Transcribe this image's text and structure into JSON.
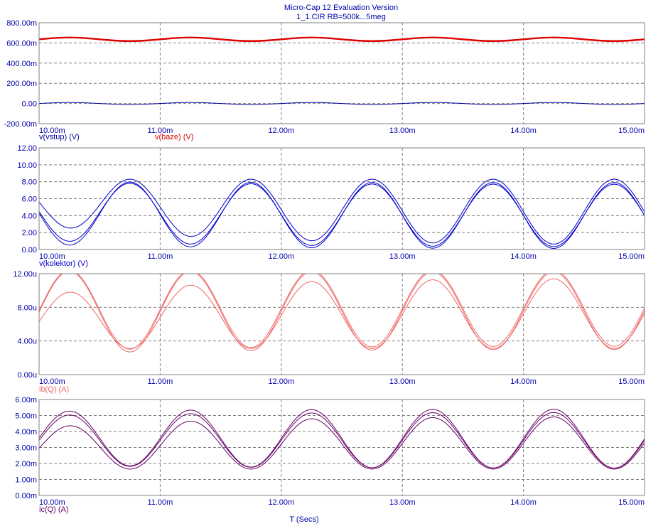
{
  "header": {
    "title": "Micro-Cap 12 Evaluation Version",
    "subtitle": "1_1.CIR RB=500k...5meg"
  },
  "colors": {
    "axis_text": "#0000aa",
    "grid": "#7f7f7f",
    "vstup": "#000099",
    "baze": "#dd0000",
    "kolektor": "#0000cc",
    "ib": "#ee6666",
    "ic": "#660066"
  },
  "chart_data": [
    {
      "type": "line",
      "x_range": [
        10.0,
        15.0
      ],
      "x_unit": "ms",
      "x_ticks": [
        "10.00m",
        "11.00m",
        "12.00m",
        "13.00m",
        "14.00m",
        "15.00m"
      ],
      "ylim": [
        -0.2,
        0.8
      ],
      "y_ticks": [
        "800.00m",
        "600.00m",
        "400.00m",
        "200.00m",
        "0.00",
        "-200.00m"
      ],
      "grid": true,
      "labels": [
        {
          "text": "v(vstup) (V)",
          "color": "#000099"
        },
        {
          "text": "v(baze) (V)",
          "color": "#dd0000"
        }
      ],
      "series": [
        {
          "name": "v(vstup) (V)",
          "color": "#000099",
          "wave": {
            "offset": 0.0,
            "amplitude": 0.01,
            "freq_khz": 1.0,
            "phase_ms": 0.25
          }
        },
        {
          "name": "v(baze) (V)",
          "color": "#dd0000",
          "wave": {
            "offset": 0.632,
            "amplitude": 0.018,
            "freq_khz": 1.0,
            "phase_ms": 0.25
          }
        },
        {
          "name": "v(baze) (V)",
          "color": "#dd0000",
          "wave": {
            "offset": 0.636,
            "amplitude": 0.018,
            "freq_khz": 1.0,
            "phase_ms": 0.25
          }
        },
        {
          "name": "v(baze) (V)",
          "color": "#dd0000",
          "wave": {
            "offset": 0.64,
            "amplitude": 0.017,
            "freq_khz": 1.0,
            "phase_ms": 0.25
          }
        }
      ]
    },
    {
      "type": "line",
      "x_range": [
        10.0,
        15.0
      ],
      "x_unit": "ms",
      "x_ticks": [
        "10.00m",
        "11.00m",
        "12.00m",
        "13.00m",
        "14.00m",
        "15.00m"
      ],
      "ylim": [
        0,
        12
      ],
      "y_ticks": [
        "12.00",
        "10.00",
        "8.00",
        "6.00",
        "4.00",
        "2.00",
        "0.00"
      ],
      "grid": true,
      "labels": [
        {
          "text": "v(kolektor) (V)",
          "color": "#0000cc"
        }
      ],
      "series": [
        {
          "name": "v(kolektor) (V)",
          "color": "#0000cc",
          "wave": {
            "offset": 4.0,
            "amplitude": 3.7,
            "freq_khz": 1.0,
            "phase_ms": 0.75,
            "drift_offset": 0.5,
            "drift_amplitude": -0.3,
            "tau_ms": 1.5
          }
        },
        {
          "name": "v(kolektor) (V)",
          "color": "#0000cc",
          "wave": {
            "offset": 4.0,
            "amplitude": 3.9,
            "freq_khz": 1.0,
            "phase_ms": 0.75,
            "drift_offset": 0.3,
            "drift_amplitude": -0.2,
            "tau_ms": 1.5
          }
        },
        {
          "name": "v(kolektor) (V)",
          "color": "#0000cc",
          "wave": {
            "offset": 4.4,
            "amplitude": 3.9,
            "freq_khz": 1.0,
            "phase_ms": 0.75,
            "drift_offset": 1.2,
            "drift_amplitude": -1.2,
            "tau_ms": 1.5
          }
        }
      ]
    },
    {
      "type": "line",
      "x_range": [
        10.0,
        15.0
      ],
      "x_unit": "ms",
      "x_ticks": [
        "10.00m",
        "11.00m",
        "12.00m",
        "13.00m",
        "14.00m",
        "15.00m"
      ],
      "ylim": [
        0,
        12
      ],
      "y_ticks": [
        "12.00u",
        "8.00u",
        "4.00u",
        "0.00u"
      ],
      "grid": true,
      "labels": [
        {
          "text": "ib(Q) (A)",
          "color": "#ee6666"
        }
      ],
      "series": [
        {
          "name": "ib(Q) (A)",
          "color": "#ee6666",
          "wave": {
            "offset": 7.9,
            "amplitude": 4.5,
            "freq_khz": 1.0,
            "phase_ms": 0.25,
            "drift_offset": -0.3,
            "drift_amplitude": 0.3,
            "tau_ms": 1.5
          }
        },
        {
          "name": "ib(Q) (A)",
          "color": "#ee6666",
          "wave": {
            "offset": 7.6,
            "amplitude": 4.6,
            "freq_khz": 1.0,
            "phase_ms": 0.25,
            "drift_offset": -0.2,
            "drift_amplitude": 0.3,
            "tau_ms": 1.5
          }
        },
        {
          "name": "ib(Q) (A)",
          "color": "#ee6666",
          "wave": {
            "offset": 7.3,
            "amplitude": 4.2,
            "freq_khz": 1.0,
            "phase_ms": 0.25,
            "drift_offset": -1.0,
            "drift_amplitude": -1.0,
            "tau_ms": 1.5
          }
        }
      ]
    },
    {
      "type": "line",
      "x_range": [
        10.0,
        15.0
      ],
      "x_unit": "ms",
      "x_ticks": [
        "10.00m",
        "11.00m",
        "12.00m",
        "13.00m",
        "14.00m",
        "15.00m"
      ],
      "ylim": [
        0,
        6
      ],
      "y_ticks": [
        "6.00m",
        "5.00m",
        "4.00m",
        "3.00m",
        "2.00m",
        "1.00m",
        "0.00m"
      ],
      "grid": true,
      "labels": [
        {
          "text": "ic(Q) (A)",
          "color": "#660066"
        }
      ],
      "xlabel": "T (Secs)",
      "series": [
        {
          "name": "ic(Q) (A)",
          "color": "#660066",
          "wave": {
            "offset": 3.55,
            "amplitude": 1.85,
            "freq_khz": 1.0,
            "phase_ms": 0.25,
            "drift_offset": 0.05,
            "drift_amplitude": -0.2,
            "tau_ms": 1.5
          }
        },
        {
          "name": "ic(Q) (A)",
          "color": "#660066",
          "wave": {
            "offset": 3.45,
            "amplitude": 1.75,
            "freq_khz": 1.0,
            "phase_ms": 0.25,
            "drift_offset": 0.0,
            "drift_amplitude": -0.2,
            "tau_ms": 1.5
          }
        },
        {
          "name": "ic(Q) (A)",
          "color": "#660066",
          "wave": {
            "offset": 3.3,
            "amplitude": 1.65,
            "freq_khz": 1.0,
            "phase_ms": 0.25,
            "drift_offset": -0.35,
            "drift_amplitude": -0.35,
            "tau_ms": 1.5
          }
        }
      ]
    }
  ]
}
